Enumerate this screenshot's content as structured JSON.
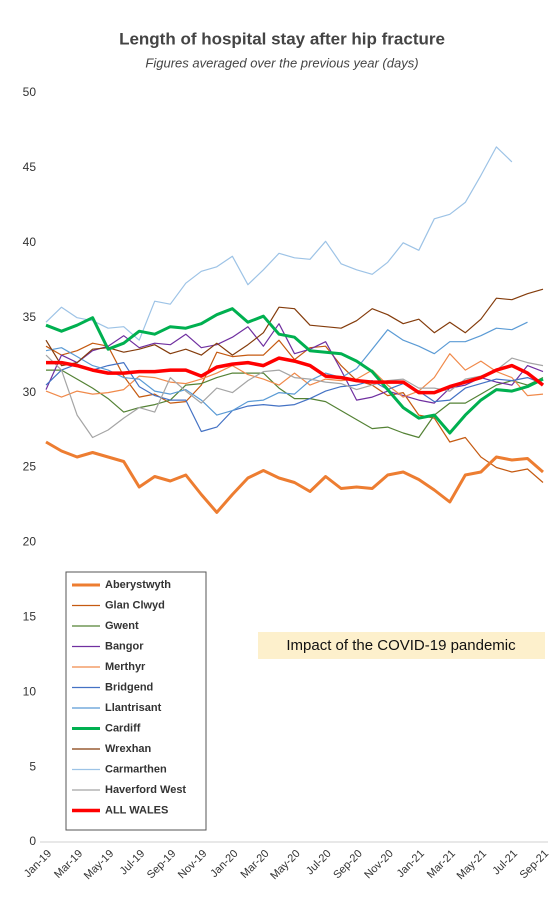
{
  "chart_data": {
    "type": "line",
    "title": "Length of hospital stay after hip fracture",
    "subtitle": "Figures averaged over the previous year (days)",
    "annotation": "Impact of the COVID-19 pandemic",
    "categories": [
      "Jan-19",
      null,
      "Mar-19",
      null,
      "May-19",
      null,
      "Jul-19",
      null,
      "Sep-19",
      null,
      "Nov-19",
      null,
      "Jan-20",
      null,
      "Mar-20",
      null,
      "May-20",
      null,
      "Jul-20",
      null,
      "Sep-20",
      null,
      "Nov-20",
      null,
      "Jan-21",
      null,
      "Mar-21",
      null,
      "May-21",
      null,
      "Jul-21",
      null,
      "Sep-21"
    ],
    "ylim": [
      0,
      50
    ],
    "yticks": [
      0,
      5,
      10,
      15,
      20,
      25,
      30,
      35,
      40,
      45,
      50
    ],
    "grid": false,
    "series": [
      {
        "name": "Aberystwyth",
        "color": "#ed7d31",
        "linewidth": 3,
        "values": [
          26.7,
          26.1,
          25.7,
          26.0,
          25.7,
          25.4,
          23.7,
          24.4,
          24.1,
          24.5,
          23.2,
          22.0,
          23.2,
          24.3,
          24.8,
          24.3,
          24.0,
          23.4,
          24.4,
          23.6,
          23.7,
          23.6,
          24.5,
          24.7,
          24.2,
          23.5,
          22.7,
          24.5,
          24.7,
          25.7,
          25.5,
          25.6,
          24.7
        ]
      },
      {
        "name": "Glan Clwyd",
        "color": "#c55a11",
        "linewidth": 1.2,
        "values": [
          33.1,
          32.5,
          32.8,
          33.3,
          33.1,
          31.1,
          29.7,
          29.9,
          29.3,
          29.4,
          30.5,
          32.7,
          32.4,
          32.5,
          32.5,
          33.5,
          32.2,
          33.0,
          33.1,
          31.8,
          30.8,
          30.5,
          29.8,
          30.0,
          28.5,
          28.3,
          26.7,
          27.0,
          25.7,
          25.0,
          24.7,
          24.9,
          24.0
        ]
      },
      {
        "name": "Gwent",
        "color": "#548235",
        "linewidth": 1.2,
        "values": [
          31.5,
          31.5,
          30.9,
          30.3,
          29.6,
          28.7,
          29.0,
          29.2,
          29.5,
          30.5,
          30.6,
          31.0,
          31.3,
          31.3,
          31.3,
          30.3,
          29.6,
          29.6,
          29.4,
          28.8,
          28.2,
          27.6,
          27.7,
          27.3,
          27.0,
          28.5,
          29.3,
          29.3,
          29.9,
          30.5,
          30.8,
          30.5,
          31.0
        ]
      },
      {
        "name": "Bangor",
        "color": "#7030a0",
        "linewidth": 1.2,
        "values": [
          30.2,
          32.5,
          32.0,
          32.8,
          33.1,
          33.8,
          33.0,
          33.3,
          33.2,
          33.9,
          33.0,
          33.2,
          33.7,
          34.4,
          33.1,
          34.6,
          32.6,
          32.9,
          33.4,
          31.5,
          29.5,
          29.7,
          30.1,
          29.8,
          29.5,
          29.3,
          30.3,
          30.5,
          31.0,
          30.7,
          30.5,
          31.8,
          31.4
        ]
      },
      {
        "name": "Merthyr",
        "color": "#f08a4b",
        "linewidth": 1.2,
        "values": [
          30.1,
          29.7,
          30.1,
          29.9,
          30.0,
          30.2,
          31.1,
          31.0,
          30.7,
          30.6,
          30.9,
          31.3,
          31.8,
          31.2,
          30.9,
          30.5,
          31.3,
          30.5,
          30.9,
          30.8,
          30.9,
          31.5,
          30.5,
          29.7,
          30.1,
          31.0,
          32.6,
          31.5,
          32.1,
          31.4,
          31.0,
          29.8,
          29.9
        ]
      },
      {
        "name": "Bridgend",
        "color": "#4472c4",
        "linewidth": 1.2,
        "values": [
          30.5,
          31.5,
          31.9,
          31.5,
          31.8,
          32.0,
          30.4,
          29.8,
          29.5,
          29.5,
          27.4,
          27.7,
          28.8,
          29.1,
          29.2,
          29.1,
          29.2,
          29.6,
          30.1,
          30.4,
          30.5,
          30.8,
          30.2,
          30.6,
          30.1,
          29.4,
          29.5,
          30.3,
          30.6,
          30.9,
          30.8,
          31.0,
          30.6
        ]
      },
      {
        "name": "Llantrisant",
        "color": "#5b9bd5",
        "linewidth": 1.2,
        "values": [
          32.8,
          33.0,
          32.4,
          31.8,
          31.5,
          31.0,
          30.9,
          30.1,
          29.9,
          30.2,
          29.5,
          28.5,
          28.8,
          29.4,
          29.5,
          30.0,
          29.9,
          30.8,
          31.3,
          31.0,
          31.6,
          32.9,
          34.2,
          33.5,
          33.1,
          32.6,
          33.4,
          33.4,
          33.8,
          34.3,
          34.2,
          34.7,
          null
        ]
      },
      {
        "name": "Cardiff",
        "color": "#00b050",
        "linewidth": 3,
        "values": [
          34.5,
          34.1,
          34.5,
          35.0,
          32.9,
          33.3,
          34.1,
          33.9,
          34.4,
          34.3,
          34.6,
          35.2,
          35.6,
          34.7,
          35.1,
          33.9,
          33.7,
          32.8,
          32.7,
          32.6,
          32.1,
          31.4,
          30.2,
          29.0,
          28.3,
          28.5,
          27.3,
          28.5,
          29.5,
          30.2,
          30.1,
          30.4,
          30.9
        ]
      },
      {
        "name": "Wrexhan",
        "color": "#843c0c",
        "linewidth": 1.2,
        "values": [
          33.5,
          31.8,
          32.0,
          32.9,
          33.0,
          32.7,
          32.9,
          33.2,
          32.6,
          32.9,
          32.5,
          33.3,
          32.5,
          33.2,
          34.0,
          35.7,
          35.6,
          34.5,
          34.4,
          34.3,
          34.8,
          35.6,
          35.2,
          34.6,
          34.9,
          34.0,
          34.7,
          34.0,
          34.9,
          36.3,
          36.2,
          36.6,
          36.9
        ]
      },
      {
        "name": "Carmarthen",
        "color": "#9dc3e6",
        "linewidth": 1.2,
        "values": [
          34.7,
          35.7,
          35.0,
          34.8,
          34.3,
          34.4,
          33.5,
          36.1,
          35.9,
          37.3,
          38.1,
          38.4,
          39.1,
          37.2,
          38.2,
          39.3,
          39.0,
          38.9,
          40.1,
          38.6,
          38.2,
          37.9,
          38.7,
          40.0,
          39.5,
          41.6,
          41.9,
          42.7,
          44.5,
          46.4,
          45.4,
          null,
          null
        ]
      },
      {
        "name": "Haverford West",
        "color": "#a5a5a5",
        "linewidth": 1.2,
        "values": [
          32.5,
          31.5,
          28.5,
          27.0,
          27.5,
          28.3,
          29.0,
          28.7,
          31.0,
          30.1,
          29.3,
          30.3,
          30.0,
          30.8,
          31.4,
          31.5,
          31.0,
          30.9,
          30.7,
          30.6,
          30.2,
          30.5,
          30.8,
          30.9,
          30.3,
          30.3,
          30.1,
          30.9,
          31.1,
          31.5,
          32.3,
          32.0,
          31.8
        ]
      },
      {
        "name": "ALL WALES",
        "color": "#ff0000",
        "linewidth": 3.5,
        "values": [
          32.0,
          32.0,
          31.8,
          31.5,
          31.3,
          31.3,
          31.4,
          31.4,
          31.5,
          31.5,
          31.1,
          31.7,
          31.9,
          32.0,
          31.8,
          32.3,
          32.1,
          31.8,
          31.1,
          31.0,
          30.8,
          30.7,
          30.7,
          30.7,
          30.0,
          30.0,
          30.4,
          30.7,
          31.0,
          31.5,
          31.8,
          31.3,
          30.5
        ]
      }
    ]
  }
}
